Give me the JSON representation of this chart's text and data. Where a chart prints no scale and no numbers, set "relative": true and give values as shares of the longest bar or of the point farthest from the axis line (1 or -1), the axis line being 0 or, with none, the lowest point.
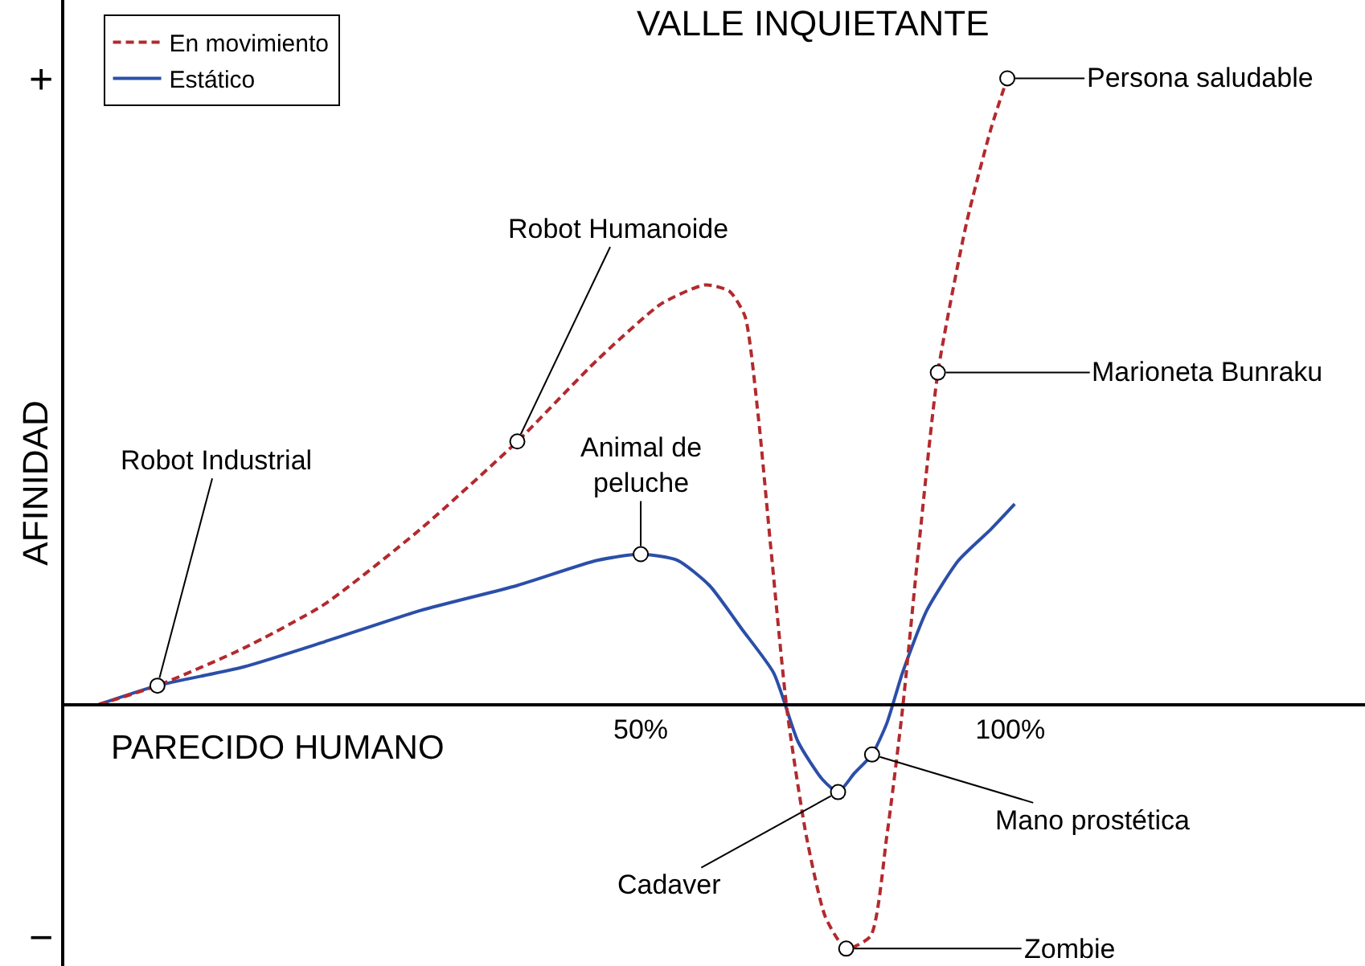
{
  "chart_data": {
    "type": "line",
    "relative": true,
    "xlabel": "PARECIDO HUMANO",
    "ylabel": "AFINIDAD",
    "xlim": [
      -28,
      148
    ],
    "xticks": [
      {
        "value": 50,
        "label": "50%"
      },
      {
        "value": 100,
        "label": "100%"
      }
    ],
    "legend": "top left",
    "series": [
      {
        "name": "En movimiento",
        "color": "#b22a2e",
        "line_style": "dashed",
        "x": [
          -23.3,
          -15.4,
          -3.7,
          7.2,
          20.2,
          33.3,
          44.1,
          52.8,
          58.7,
          62.0,
          64.1,
          65.9,
          67.6,
          69.8,
          72.4,
          75.0,
          77.8,
          81.1,
          83.3,
          85.4,
          87.6,
          90.2,
          94.1,
          97.4,
          99.6
        ],
        "values": [
          0,
          0.03,
          0.09,
          0.16,
          0.28,
          0.42,
          0.55,
          0.64,
          0.67,
          0.66,
          0.62,
          0.46,
          0.25,
          -0.01,
          -0.21,
          -0.34,
          -0.39,
          -0.37,
          -0.21,
          -0.01,
          0.25,
          0.53,
          0.77,
          0.92,
          1
        ]
      },
      {
        "name": "Estático",
        "color": "#2b4fa8",
        "line_style": "solid",
        "x": [
          -23.3,
          -15.4,
          -3.7,
          7.2,
          20.2,
          33.3,
          44.1,
          50.0,
          55.0,
          59.3,
          63.7,
          68.0,
          71.3,
          74.6,
          76.7,
          78.9,
          81.3,
          83.3,
          85.4,
          88.7,
          93.0,
          97.4,
          100.6
        ],
        "values": [
          0,
          0.03,
          0.06,
          0.1,
          0.15,
          0.19,
          0.23,
          0.24,
          0.23,
          0.19,
          0.12,
          0.05,
          -0.06,
          -0.12,
          -0.14,
          -0.11,
          -0.08,
          -0.03,
          0.05,
          0.15,
          0.23,
          0.28,
          0.32
        ]
      }
    ],
    "annotations": [
      {
        "text": "Robot Industrial",
        "x": -15.4,
        "y": 0.03
      },
      {
        "text": "Robot Humanoide",
        "x": 33.3,
        "y": 0.42
      },
      {
        "text": "Animal de\npeluche",
        "x": 50.0,
        "y": 0.24
      },
      {
        "text": "Cadaver",
        "x": 76.7,
        "y": -0.14
      },
      {
        "text": "Zombie",
        "x": 77.8,
        "y": -0.39
      },
      {
        "text": "Mano prostética",
        "x": 81.3,
        "y": -0.08
      },
      {
        "text": "Marioneta Bunraku",
        "x": 90.2,
        "y": 0.53
      },
      {
        "text": "Persona saludable",
        "x": 99.6,
        "y": 1
      },
      "VALLE INQUIETANTE",
      "+",
      "−"
    ]
  }
}
